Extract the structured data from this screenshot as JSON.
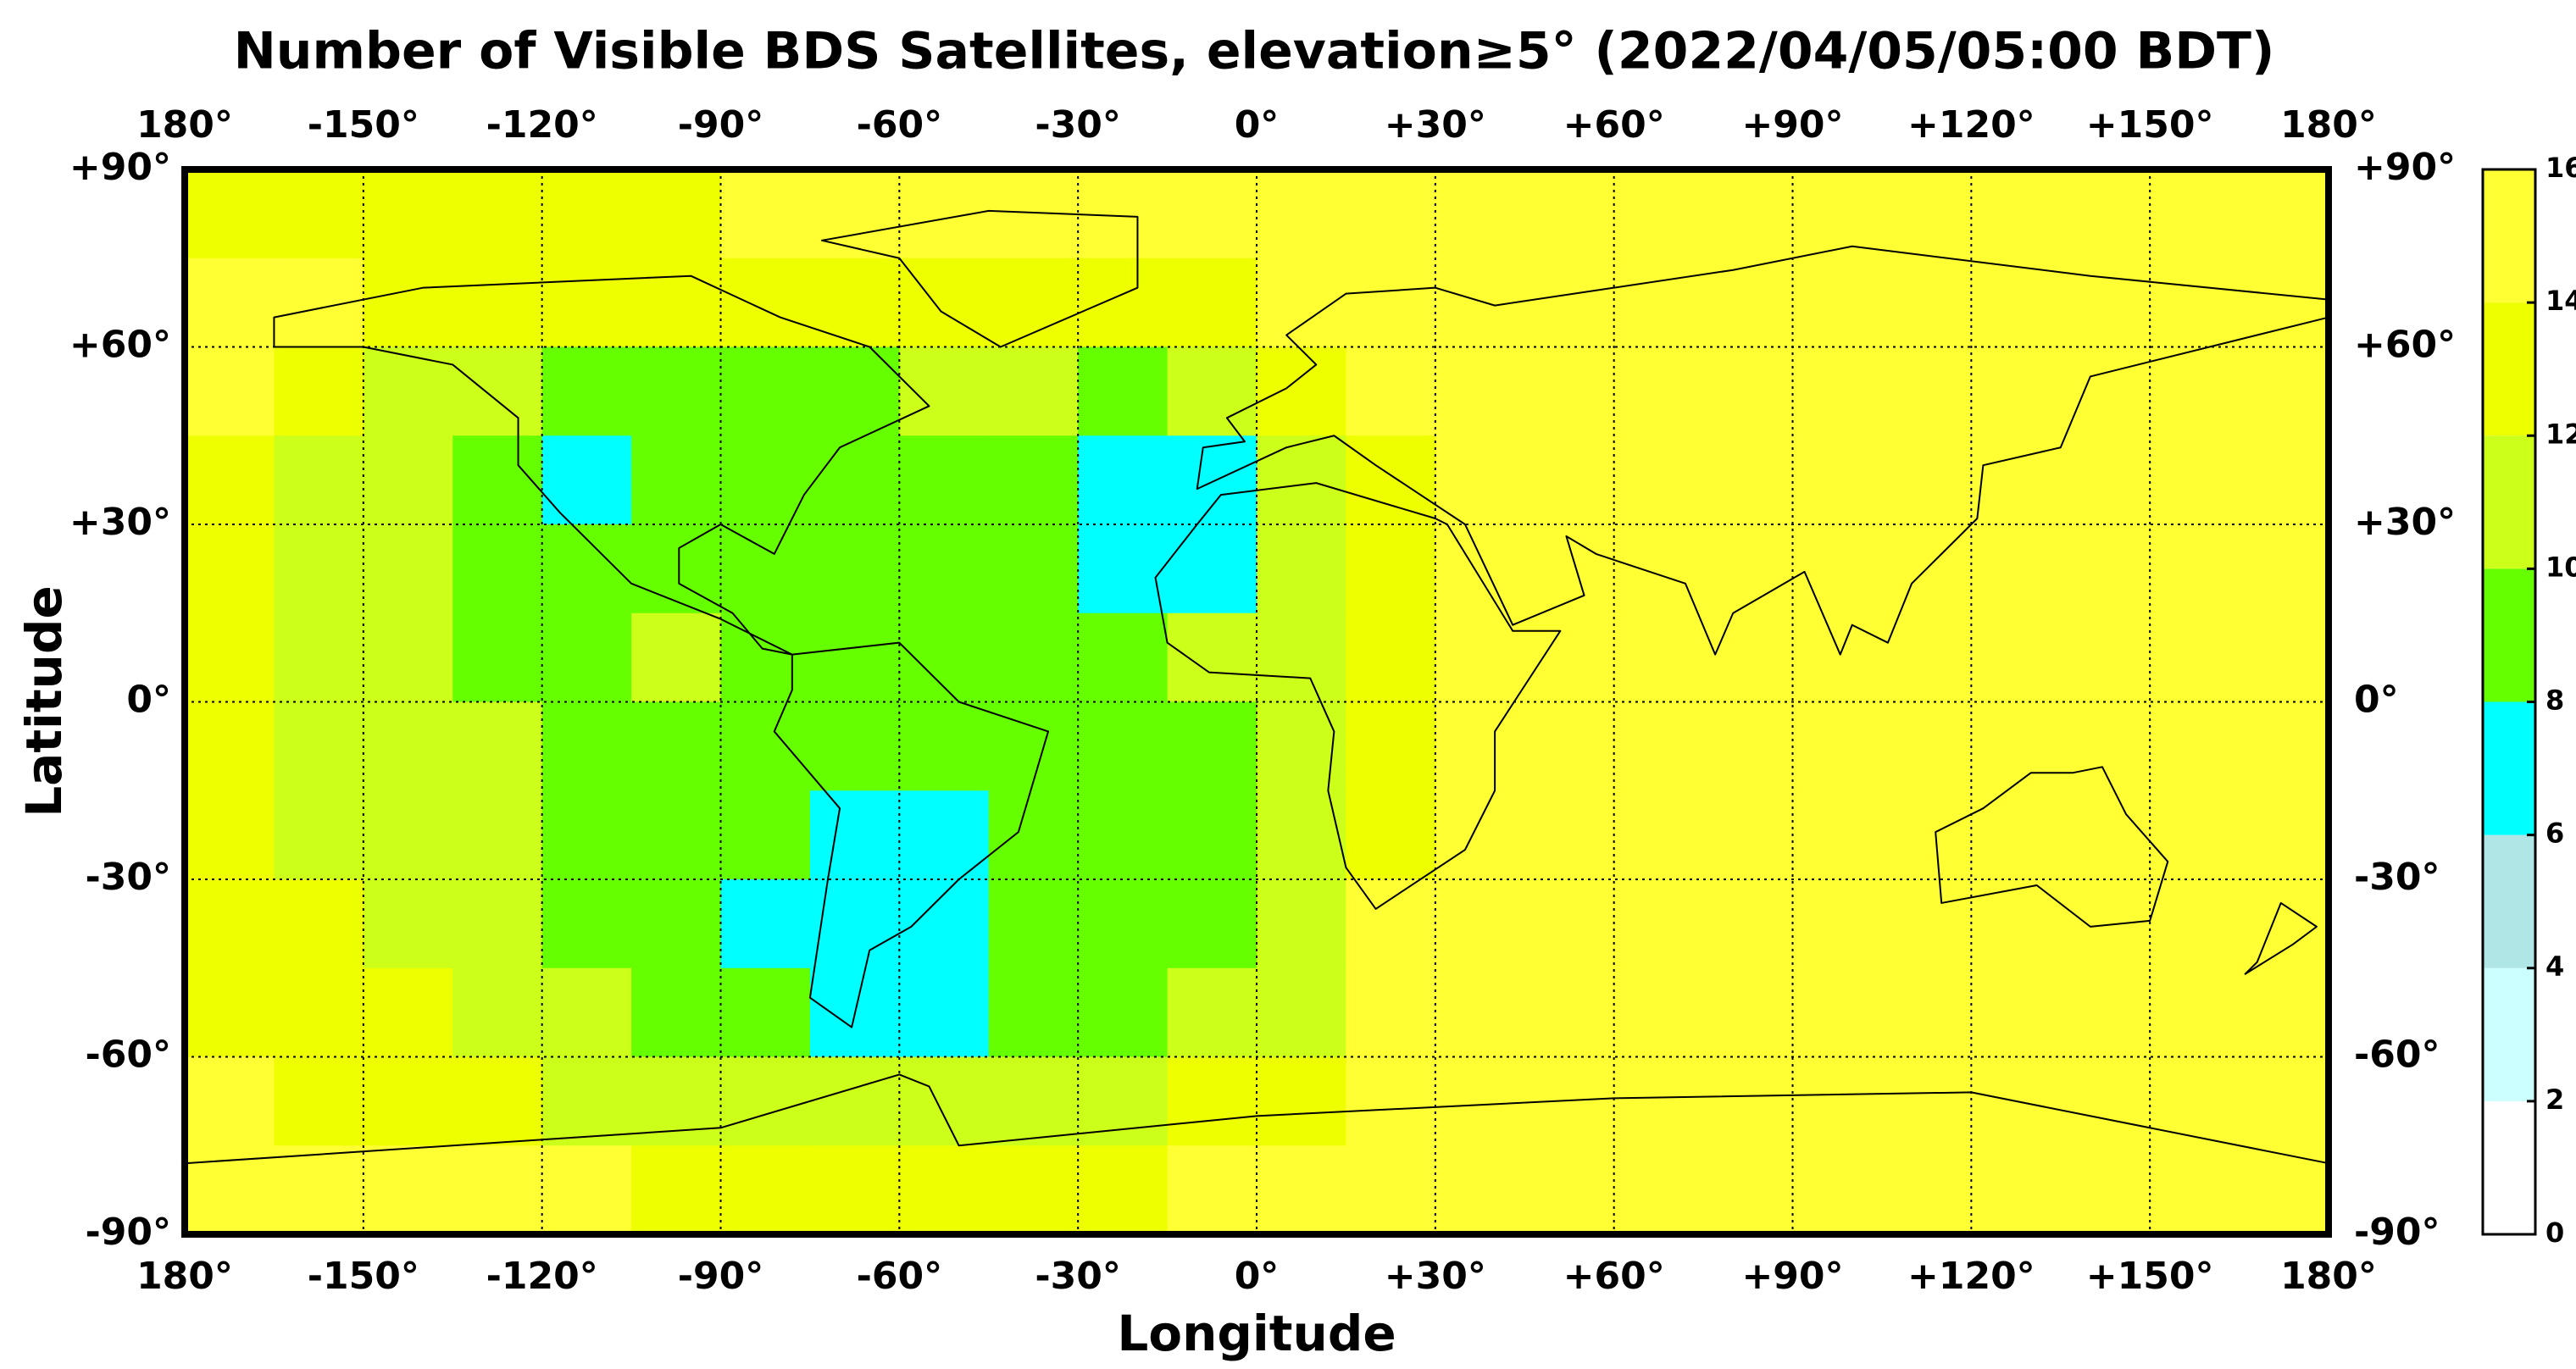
{
  "chart_data": {
    "type": "heatmap",
    "title": "Number of Visible BDS Satellites, elevation≥5° (2022/04/05/05:00 BDT)",
    "xlabel": "Longitude",
    "ylabel": "Latitude",
    "xlim": [
      -180,
      180
    ],
    "ylim": [
      -90,
      90
    ],
    "xticks": [
      {
        "value": -180,
        "label": "180°"
      },
      {
        "value": -150,
        "label": "-150°"
      },
      {
        "value": -120,
        "label": "-120°"
      },
      {
        "value": -90,
        "label": "-90°"
      },
      {
        "value": -60,
        "label": "-60°"
      },
      {
        "value": -30,
        "label": "-30°"
      },
      {
        "value": 0,
        "label": "0°"
      },
      {
        "value": 30,
        "label": "+30°"
      },
      {
        "value": 60,
        "label": "+60°"
      },
      {
        "value": 90,
        "label": "+90°"
      },
      {
        "value": 120,
        "label": "+120°"
      },
      {
        "value": 150,
        "label": "+150°"
      },
      {
        "value": 180,
        "label": "180°"
      }
    ],
    "yticks": [
      {
        "value": 90,
        "label": "+90°"
      },
      {
        "value": 60,
        "label": "+60°"
      },
      {
        "value": 30,
        "label": "+30°"
      },
      {
        "value": 0,
        "label": "0°"
      },
      {
        "value": -30,
        "label": "-30°"
      },
      {
        "value": -60,
        "label": "-60°"
      },
      {
        "value": -90,
        "label": "-90°"
      }
    ],
    "grid": true,
    "lon_edges": [
      -180,
      -165,
      -150,
      -135,
      -120,
      -105,
      -90,
      -75,
      -60,
      -45,
      -30,
      -15,
      0,
      15,
      30,
      45,
      60,
      75,
      90,
      105,
      120,
      135,
      150,
      165,
      180
    ],
    "lat_edges": [
      90,
      75,
      60,
      45,
      30,
      15,
      0,
      -15,
      -30,
      -45,
      -60,
      -75,
      -90
    ],
    "values": [
      [
        13,
        13,
        13,
        13,
        13,
        13,
        15,
        15,
        15,
        15,
        15,
        15,
        15,
        15,
        15,
        15,
        15,
        15,
        15,
        15,
        15,
        15,
        15,
        15
      ],
      [
        15,
        15,
        13,
        13,
        13,
        13,
        13,
        13,
        13,
        13,
        13,
        13,
        15,
        15,
        15,
        15,
        15,
        15,
        15,
        15,
        15,
        15,
        15,
        15
      ],
      [
        15,
        13,
        11,
        11,
        9,
        9,
        9,
        9,
        11,
        11,
        9,
        11,
        13,
        15,
        15,
        15,
        15,
        15,
        15,
        15,
        15,
        15,
        15,
        15
      ],
      [
        13,
        11,
        11,
        9,
        7,
        9,
        9,
        9,
        9,
        9,
        7,
        7,
        11,
        13,
        15,
        15,
        15,
        15,
        15,
        15,
        15,
        15,
        15,
        15
      ],
      [
        13,
        11,
        11,
        9,
        9,
        9,
        9,
        9,
        9,
        9,
        7,
        7,
        11,
        13,
        15,
        15,
        15,
        15,
        15,
        15,
        15,
        15,
        15,
        15
      ],
      [
        13,
        11,
        11,
        9,
        9,
        11,
        9,
        9,
        9,
        9,
        9,
        11,
        11,
        13,
        15,
        15,
        15,
        15,
        15,
        15,
        15,
        15,
        15,
        15
      ],
      [
        13,
        11,
        11,
        11,
        9,
        9,
        9,
        9,
        9,
        9,
        9,
        9,
        11,
        13,
        15,
        15,
        15,
        15,
        15,
        15,
        15,
        15,
        15,
        15
      ],
      [
        13,
        11,
        11,
        11,
        9,
        9,
        9,
        7,
        7,
        9,
        9,
        9,
        11,
        13,
        15,
        15,
        15,
        15,
        15,
        15,
        15,
        15,
        15,
        15
      ],
      [
        13,
        13,
        11,
        11,
        9,
        9,
        7,
        7,
        7,
        9,
        9,
        9,
        11,
        15,
        15,
        15,
        15,
        15,
        15,
        15,
        15,
        15,
        15,
        15
      ],
      [
        13,
        13,
        13,
        11,
        11,
        9,
        9,
        7,
        7,
        9,
        9,
        11,
        11,
        15,
        15,
        15,
        15,
        15,
        15,
        15,
        15,
        15,
        15,
        15
      ],
      [
        15,
        13,
        13,
        13,
        11,
        11,
        11,
        11,
        11,
        11,
        11,
        13,
        13,
        15,
        15,
        15,
        15,
        15,
        15,
        15,
        15,
        15,
        15,
        15
      ],
      [
        15,
        15,
        15,
        15,
        15,
        13,
        13,
        13,
        13,
        13,
        13,
        15,
        15,
        15,
        15,
        15,
        15,
        15,
        15,
        15,
        15,
        15,
        15,
        15
      ]
    ],
    "colorbar": {
      "ticks": [
        0,
        2,
        4,
        6,
        8,
        10,
        12,
        14,
        16
      ],
      "colors": [
        "#ffffff",
        "#ccffff",
        "#b0e6e6",
        "#00ffff",
        "#66ff00",
        "#ccff1a",
        "#eeff00",
        "#ffff33"
      ]
    }
  }
}
